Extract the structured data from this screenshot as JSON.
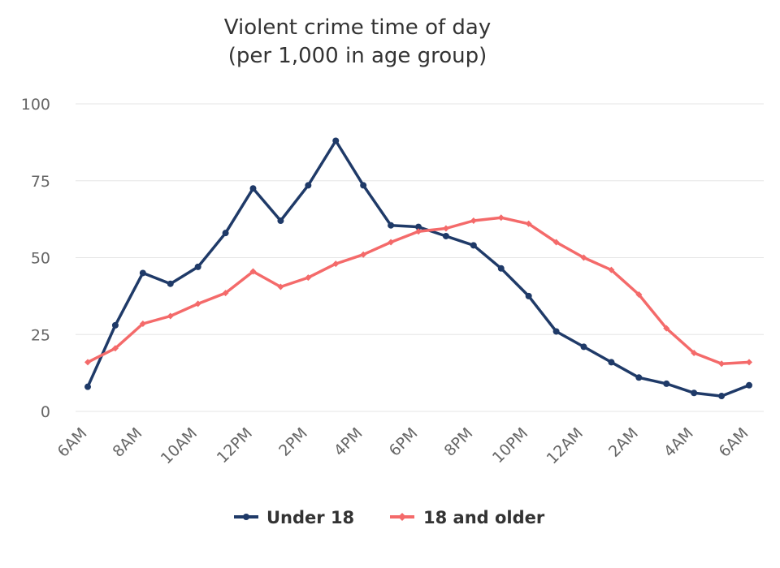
{
  "chart_data": {
    "type": "line",
    "title": "Violent crime time of day",
    "subtitle": "(per 1,000 in age group)",
    "xlabel": "",
    "ylabel": "",
    "ylim": [
      0,
      100
    ],
    "yticks": [
      0,
      25,
      50,
      75,
      100
    ],
    "grid": true,
    "legend": "bottom",
    "x_tick_labels": [
      "6AM",
      "8AM",
      "10AM",
      "12PM",
      "2PM",
      "4PM",
      "6PM",
      "8PM",
      "10PM",
      "12AM",
      "2AM",
      "4AM",
      "6AM"
    ],
    "x": [
      "6AM",
      "7AM",
      "8AM",
      "9AM",
      "10AM",
      "11AM",
      "12PM",
      "1PM",
      "2PM",
      "3PM",
      "4PM",
      "5PM",
      "6PM",
      "7PM",
      "8PM",
      "9PM",
      "10PM",
      "11PM",
      "12AM",
      "1AM",
      "2AM",
      "3AM",
      "4AM",
      "5AM",
      "6AM"
    ],
    "series": [
      {
        "name": "Under 18",
        "color": "#1f3a68",
        "marker": "circle",
        "values": [
          8,
          28,
          45,
          41.5,
          47,
          58,
          72.5,
          62,
          73.5,
          88,
          73.5,
          60.5,
          60,
          57,
          54,
          46.5,
          37.5,
          26,
          21,
          16,
          11,
          9,
          6,
          5,
          8.5
        ]
      },
      {
        "name": "18 and older",
        "color": "#f46a6a",
        "marker": "diamond",
        "values": [
          16,
          20.5,
          28.5,
          31,
          35,
          38.5,
          45.5,
          40.5,
          43.5,
          48,
          51,
          55,
          58.5,
          59.5,
          62,
          63,
          61,
          55,
          50,
          46,
          38,
          27,
          19,
          15.5,
          16
        ]
      }
    ]
  }
}
